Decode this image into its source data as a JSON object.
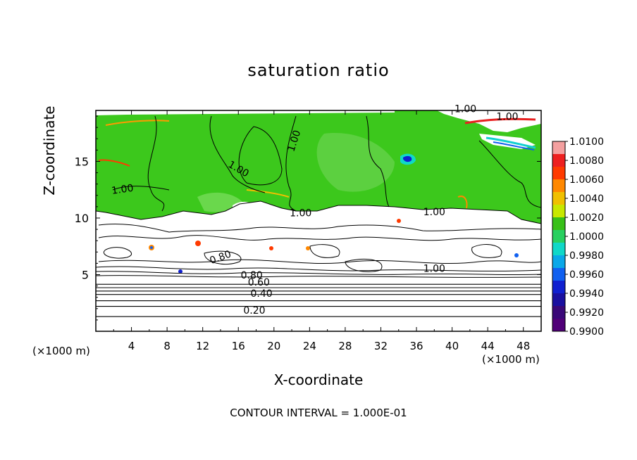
{
  "chart_data": {
    "type": "heatmap",
    "title": "saturation ratio",
    "xlabel": "X-coordinate",
    "ylabel": "Z-coordinate",
    "x_unit": "(×1000 m)",
    "x_ticks": [
      4,
      8,
      12,
      16,
      20,
      24,
      28,
      32,
      36,
      40,
      44,
      48
    ],
    "y_ticks": [
      5,
      10,
      15
    ],
    "xlim": [
      0,
      50
    ],
    "ylim": [
      0,
      19.5
    ],
    "colorbar": {
      "ticks": [
        "1.0100",
        "1.0080",
        "1.0060",
        "1.0040",
        "1.0020",
        "1.0000",
        "0.9980",
        "0.9960",
        "0.9940",
        "0.9920",
        "0.9900"
      ],
      "colors": [
        "#f4a0a0",
        "#ee2020",
        "#ff3a00",
        "#ff8800",
        "#f0c000",
        "#c8e800",
        "#38c018",
        "#28d060",
        "#10d8c8",
        "#0aa8e8",
        "#1060f0",
        "#1020d0",
        "#1a10a0",
        "#3a0878",
        "#500078"
      ]
    },
    "contour_labels": [
      {
        "text": "1.00",
        "x": 41.5,
        "y": 19.6
      },
      {
        "text": "1.00",
        "x": 46.2,
        "y": 18.9
      },
      {
        "text": "1.00",
        "x": 22.3,
        "y": 16.8,
        "rotate": -72
      },
      {
        "text": "1.00",
        "x": 16,
        "y": 14.3,
        "rotate": 30
      },
      {
        "text": "1.00",
        "x": 3,
        "y": 12.5,
        "rotate": -8
      },
      {
        "text": "1.00",
        "x": 23,
        "y": 10.4
      },
      {
        "text": "1.00",
        "x": 38,
        "y": 10.5
      },
      {
        "text": "1.00",
        "x": 38,
        "y": 5.5
      },
      {
        "text": "0.80",
        "x": 14,
        "y": 6.5,
        "rotate": -20
      },
      {
        "text": "0.80",
        "x": 17.5,
        "y": 4.9
      },
      {
        "text": "0.60",
        "x": 18.3,
        "y": 4.3
      },
      {
        "text": "0.40",
        "x": 18.6,
        "y": 3.3
      },
      {
        "text": "0.20",
        "x": 17.8,
        "y": 1.8
      }
    ],
    "horizontal_contours": [
      4.15,
      3.85,
      3.55,
      3.25,
      2.7,
      2.2,
      1.3
    ],
    "contour_interval_note": "CONTOUR INTERVAL = 1.000E-01"
  }
}
